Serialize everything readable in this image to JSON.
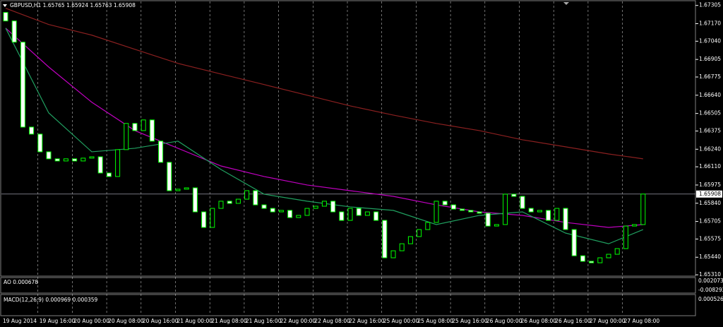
{
  "chart_data": {
    "type": "candlestick",
    "title": "GBPUSD,H1 1.65765 1.65924 1.65763 1.65908",
    "up_color": "#00ff00",
    "down_color": "#ffffff",
    "ylim": [
      1.653,
      1.6734
    ],
    "yticks": [
      1.67305,
      {
        "value": 1.6717,
        "label": "1.67170"
      },
      {
        "value": 1.6704,
        "label": "1.67040"
      },
      1.66905,
      1.66775,
      {
        "value": 1.6664,
        "label": "1.66640"
      },
      1.66505,
      1.66375,
      {
        "value": 1.6624,
        "label": "1.66240"
      },
      {
        "value": 1.6611,
        "label": "1.66110"
      },
      1.65975,
      {
        "value": 1.6584,
        "label": "1.65840"
      },
      1.65705,
      1.65575,
      {
        "value": 1.6544,
        "label": "1.65440"
      },
      {
        "value": 1.6531,
        "label": "1.65310"
      }
    ],
    "categories": [
      "19 Aug 2014",
      "19 Aug 16:00",
      "20 Aug 00:00",
      "20 Aug 08:00",
      "20 Aug 16:00",
      "21 Aug 00:00",
      "21 Aug 08:00",
      "21 Aug 16:00",
      "22 Aug 00:00",
      "22 Aug 08:00",
      "22 Aug 16:00",
      "25 Aug 00:00",
      "25 Aug 08:00",
      "25 Aug 16:00",
      "26 Aug 00:00",
      "26 Aug 08:00",
      "26 Aug 16:00",
      "27 Aug 00:00",
      "27 Aug 08:00"
    ],
    "current_price": 1.65908,
    "open": [
      1.67253,
      1.6719,
      1.67033,
      1.66404,
      1.66352,
      1.66221,
      1.66169,
      1.66153,
      1.66169,
      1.66153,
      1.66174,
      1.66184,
      1.66064,
      1.66038,
      1.66237,
      1.66431,
      1.66378,
      1.66457,
      1.663,
      1.66143,
      1.65933,
      1.65944,
      1.65954,
      1.65776,
      1.65661,
      1.65802,
      1.65855,
      1.65839,
      1.6587,
      1.65933,
      1.65828,
      1.65802,
      1.65776,
      1.65787,
      1.65734,
      1.6575,
      1.65802,
      1.65818,
      1.65855,
      1.65776,
      1.65713,
      1.65802,
      1.6575,
      1.65776,
      1.65713,
      1.65436,
      1.65488,
      1.6554,
      1.65593,
      1.65645,
      1.65698,
      1.65855,
      1.65828,
      1.65797,
      1.65787,
      1.65776,
      1.65766,
      1.65671,
      1.65682,
      1.65907,
      1.65891,
      1.65802,
      1.65776,
      1.65787,
      1.65713,
      1.65802,
      1.65645,
      1.65451,
      1.6541,
      1.65399,
      1.65436,
      1.65462,
      1.65504,
      1.65671,
      1.65682
    ],
    "close": [
      1.6719,
      1.67033,
      1.66404,
      1.66352,
      1.66221,
      1.66169,
      1.66153,
      1.66169,
      1.66153,
      1.66174,
      1.66184,
      1.66064,
      1.66038,
      1.66237,
      1.66431,
      1.66378,
      1.66457,
      1.663,
      1.66143,
      1.65933,
      1.65944,
      1.65954,
      1.65776,
      1.65661,
      1.65802,
      1.65855,
      1.65839,
      1.6587,
      1.65933,
      1.65828,
      1.65802,
      1.65776,
      1.65787,
      1.65734,
      1.6575,
      1.65802,
      1.65818,
      1.65855,
      1.65776,
      1.65713,
      1.65802,
      1.6575,
      1.65776,
      1.65713,
      1.65436,
      1.65488,
      1.6554,
      1.65593,
      1.65645,
      1.65698,
      1.65855,
      1.65828,
      1.65797,
      1.65787,
      1.65776,
      1.65766,
      1.65671,
      1.65682,
      1.65907,
      1.65891,
      1.65802,
      1.65776,
      1.65787,
      1.65713,
      1.65802,
      1.65645,
      1.65451,
      1.6541,
      1.65399,
      1.65436,
      1.65462,
      1.65504,
      1.65671,
      1.65682,
      1.65908
    ],
    "moving_averages": {
      "x": [
        0,
        5,
        10,
        15,
        20,
        25,
        30,
        35,
        40,
        45,
        50,
        55,
        60,
        65,
        70,
        74
      ],
      "series": [
        {
          "color": "#8b2020",
          "values": [
            1.67284,
            1.67164,
            1.67085,
            1.6698,
            1.66876,
            1.66797,
            1.66719,
            1.6664,
            1.66561,
            1.66493,
            1.66431,
            1.66378,
            1.6631,
            1.66258,
            1.66205,
            1.66169
          ]
        },
        {
          "color": "#c000c0",
          "values": [
            1.67137,
            1.66849,
            1.66588,
            1.66378,
            1.66247,
            1.66116,
            1.66038,
            1.65975,
            1.65933,
            1.65891,
            1.65828,
            1.65776,
            1.6575,
            1.65698,
            1.65661,
            1.65682
          ]
        },
        {
          "color": "#20a060",
          "values": [
            1.67137,
            1.66509,
            1.66221,
            1.66247,
            1.663,
            1.6609,
            1.65907,
            1.65855,
            1.65813,
            1.65787,
            1.65682,
            1.6575,
            1.65776,
            1.65619,
            1.6554,
            1.65645
          ]
        }
      ]
    },
    "ao": {
      "label": "AO 0.000678",
      "scale_labels": [
        "0.002073",
        "-0.008292"
      ]
    },
    "macd": {
      "label": "MACD(12,26,9) 0.000969 0.000359",
      "scale_labels": [
        "0.000526"
      ]
    }
  }
}
